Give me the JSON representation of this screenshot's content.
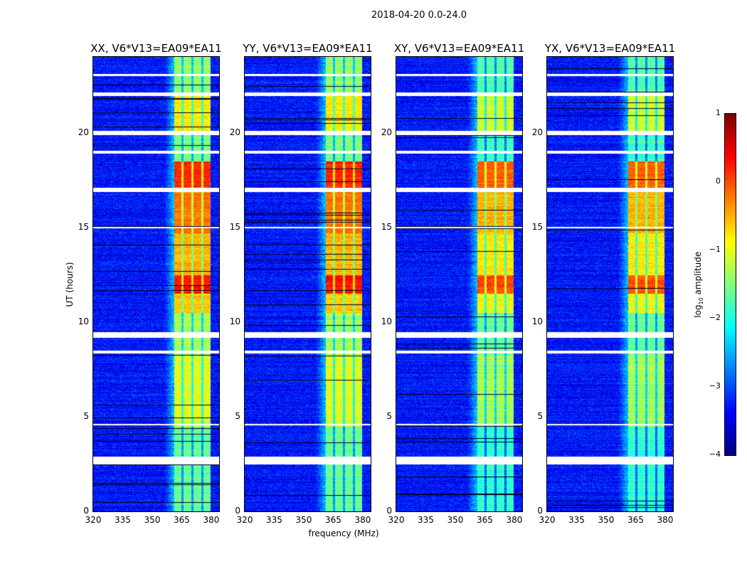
{
  "chart_data": {
    "type": "heatmap",
    "suptitle": "2018-04-20 0.0-24.0",
    "xlabel": "frequency (MHz)",
    "ylabel": "UT (hours)",
    "xlim": [
      320,
      384
    ],
    "ylim": [
      0,
      24
    ],
    "xticks": [
      "320",
      "335",
      "350",
      "365",
      "380"
    ],
    "yticks": [
      "0",
      "5",
      "10",
      "15",
      "20"
    ],
    "panels": [
      {
        "title": "XX, V6*V13=EA09*EA11"
      },
      {
        "title": "YY, V6*V13=EA09*EA11"
      },
      {
        "title": "XY, V6*V13=EA09*EA11"
      },
      {
        "title": "YX, V6*V13=EA09*EA11"
      }
    ],
    "colorbar": {
      "label_prefix": "log",
      "label_sub": "10",
      "label_suffix": " amplitude",
      "colormap": "jet",
      "range": [
        -4,
        1
      ],
      "ticks": [
        "1",
        "0",
        "−1",
        "−2",
        "−3",
        "−4"
      ]
    },
    "background_log_amplitude": -3.3,
    "band_mhz": [
      361,
      379.5
    ],
    "band_gaps_mhz": [
      365.2,
      370.2,
      375.3
    ],
    "band_levels": [
      {
        "hours": [
          0,
          4.5
        ],
        "level": -1.6
      },
      {
        "hours": [
          4.5,
          8.3
        ],
        "level": -1.0
      },
      {
        "hours": [
          8.3,
          10.5
        ],
        "level": -1.3
      },
      {
        "hours": [
          10.5,
          11.5
        ],
        "level": -0.6
      },
      {
        "hours": [
          11.5,
          12.5
        ],
        "level": 0.3
      },
      {
        "hours": [
          12.5,
          14.7
        ],
        "level": -0.5
      },
      {
        "hours": [
          14.7,
          17.0
        ],
        "level": -0.2
      },
      {
        "hours": [
          17.0,
          18.5
        ],
        "level": 0.2
      },
      {
        "hours": [
          18.5,
          19.9
        ],
        "level": -1.5
      },
      {
        "hours": [
          19.9,
          22.0
        ],
        "level": -0.8
      },
      {
        "hours": [
          22.0,
          24.0
        ],
        "level": -1.4
      }
    ],
    "flagged_hours": [
      [
        2.5,
        2.9
      ],
      [
        4.55,
        4.65
      ],
      [
        8.35,
        8.5
      ],
      [
        9.2,
        9.5
      ],
      [
        14.95,
        15.05
      ],
      [
        16.9,
        17.1
      ],
      [
        18.9,
        19.05
      ],
      [
        19.9,
        20.1
      ],
      [
        21.95,
        22.15
      ],
      [
        23.0,
        23.1
      ]
    ]
  }
}
